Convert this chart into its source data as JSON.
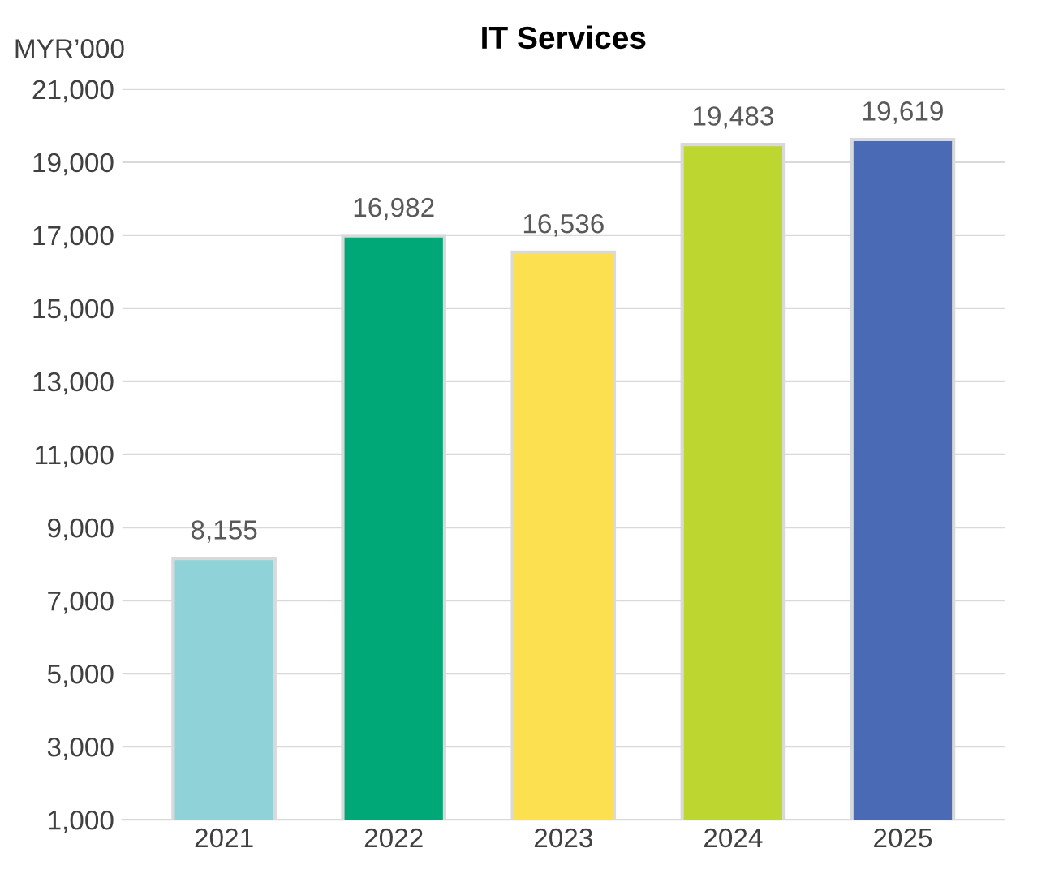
{
  "chart_data": {
    "type": "bar",
    "title": "IT Services",
    "ylabel": "MYR’000",
    "categories": [
      "2021",
      "2022",
      "2023",
      "2024",
      "2025"
    ],
    "values": [
      8155,
      16982,
      16536,
      19483,
      19619
    ],
    "colors": [
      "#8fd3d8",
      "#00a878",
      "#fde050",
      "#bdd630",
      "#4a6ab5"
    ],
    "ylim": [
      1000,
      21000
    ],
    "yticks": [
      {
        "value": 1000,
        "label": "1,000"
      },
      {
        "value": 3000,
        "label": "3,000"
      },
      {
        "value": 5000,
        "label": "5,000"
      },
      {
        "value": 7000,
        "label": "7,000"
      },
      {
        "value": 9000,
        "label": "9,000"
      },
      {
        "value": 11000,
        "label": "11,000"
      },
      {
        "value": 13000,
        "label": "13,000"
      },
      {
        "value": 15000,
        "label": "15,000"
      },
      {
        "value": 17000,
        "label": "17,000"
      },
      {
        "value": 19000,
        "label": "19,000"
      },
      {
        "value": 21000,
        "label": "21,000"
      }
    ],
    "value_labels": [
      "8,155",
      "16,982",
      "16,536",
      "19,483",
      "19,619"
    ],
    "grid": "y"
  }
}
